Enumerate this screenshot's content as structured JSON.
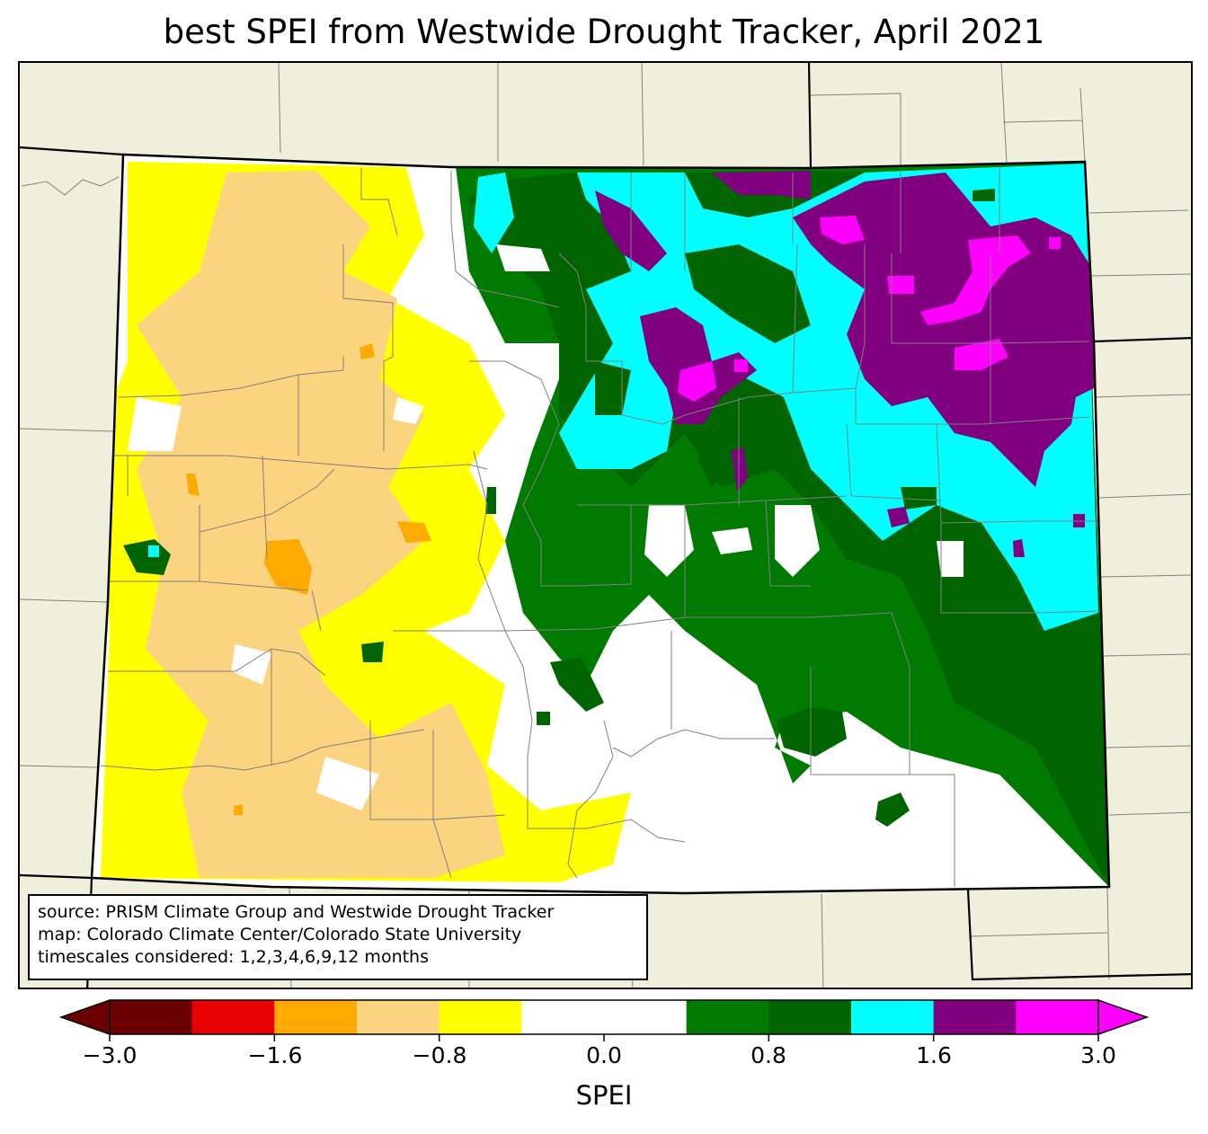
{
  "title": "best SPEI from Westwide Drought Tracker, April 2021",
  "source_lines": [
    "source: PRISM Climate Group and Westwide Drought Tracker",
    "map: Colorado Climate Center/Colorado State University",
    "timescales considered: 1,2,3,4,6,9,12 months"
  ],
  "colorbar": {
    "label": "SPEI",
    "ticks": [
      "−3.0",
      "−1.6",
      "−0.8",
      "0.0",
      "0.8",
      "1.6",
      "3.0"
    ],
    "colors": [
      "#6b0000",
      "#e60000",
      "#ffaa00",
      "#fcd37f",
      "#ffff00",
      "#ffffff",
      "#ffffff",
      "#007a00",
      "#006400",
      "#00ffff",
      "#800080",
      "#ff00ff"
    ],
    "under_color": "#6b0000",
    "over_color": "#ff00ff"
  },
  "map": {
    "background_color": "#efefdb",
    "state_fill": "#ffffff",
    "state_border_color": "#000000",
    "county_line_color": "#808080"
  }
}
